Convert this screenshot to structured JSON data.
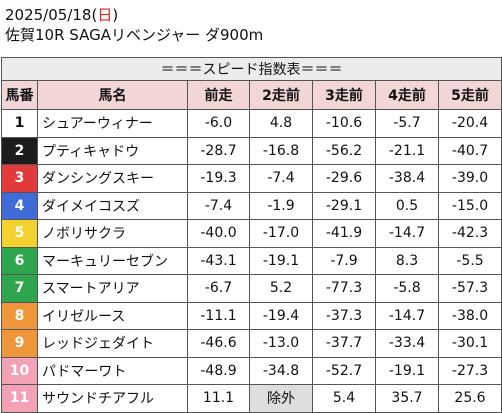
{
  "header": {
    "date": "2025/05/18",
    "dow_open": "(",
    "dow": "日",
    "dow_close": ")",
    "race": "佐賀10R SAGAリベンジャー ダ900m"
  },
  "table": {
    "caption": "＝＝＝スピード指数表＝＝＝",
    "columns": [
      "馬番",
      "馬名",
      "前走",
      "2走前",
      "3走前",
      "4走前",
      "5走前"
    ],
    "rows": [
      {
        "num": "1",
        "name": "シュアーウィナー",
        "v": [
          "-6.0",
          "4.8",
          "-10.6",
          "-5.7",
          "-20.4"
        ]
      },
      {
        "num": "2",
        "name": "プティキャドウ",
        "v": [
          "-28.7",
          "-16.8",
          "-56.2",
          "-21.1",
          "-40.7"
        ]
      },
      {
        "num": "3",
        "name": "ダンシングスキー",
        "v": [
          "-19.3",
          "-7.4",
          "-29.6",
          "-38.4",
          "-39.0"
        ]
      },
      {
        "num": "4",
        "name": "ダイメイコスズ",
        "v": [
          "-7.4",
          "-1.9",
          "-29.1",
          "0.5",
          "-15.0"
        ]
      },
      {
        "num": "5",
        "name": "ノボリサクラ",
        "v": [
          "-40.0",
          "-17.0",
          "-41.9",
          "-14.7",
          "-42.3"
        ]
      },
      {
        "num": "6",
        "name": "マーキュリーセブン",
        "v": [
          "-43.1",
          "-19.1",
          "-7.9",
          "8.3",
          "-5.5"
        ]
      },
      {
        "num": "7",
        "name": "スマートアリア",
        "v": [
          "-6.7",
          "5.2",
          "-77.3",
          "-5.8",
          "-57.3"
        ]
      },
      {
        "num": "8",
        "name": "イリゼルース",
        "v": [
          "-11.1",
          "-19.4",
          "-37.3",
          "-14.7",
          "-38.0"
        ]
      },
      {
        "num": "9",
        "name": "レッドジェダイト",
        "v": [
          "-46.6",
          "-13.0",
          "-37.7",
          "-33.4",
          "-30.1"
        ]
      },
      {
        "num": "10",
        "name": "パドマーワト",
        "v": [
          "-48.9",
          "-34.8",
          "-52.7",
          "-19.1",
          "-27.3"
        ]
      },
      {
        "num": "11",
        "name": "サウンドチアフル",
        "v": [
          "11.1",
          "除外",
          "5.4",
          "35.7",
          "25.6"
        ]
      }
    ]
  }
}
